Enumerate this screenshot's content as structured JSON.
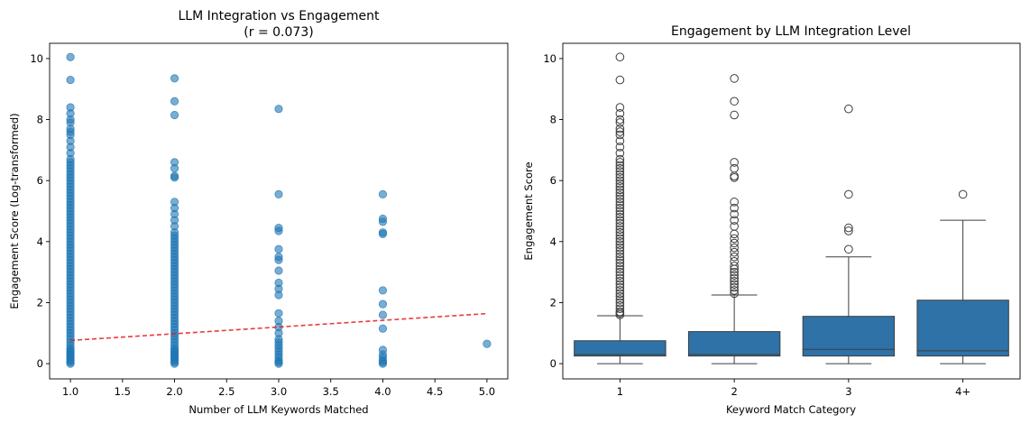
{
  "chart_data": [
    {
      "type": "scatter",
      "title": "LLM Integration vs Engagement",
      "subtitle": "(r = 0.073)",
      "xlabel": "Number of LLM Keywords Matched",
      "ylabel": "Engagement Score (Log-transformed)",
      "xlim": [
        0.8,
        5.2
      ],
      "ylim": [
        -0.5,
        10.5
      ],
      "xticks": [
        "1.0",
        "1.5",
        "2.0",
        "2.5",
        "3.0",
        "3.5",
        "4.0",
        "4.5",
        "5.0"
      ],
      "yticks": [
        "0",
        "2",
        "4",
        "6",
        "8",
        "10"
      ],
      "grid": false,
      "point_color": "#1f77b4",
      "series": [
        {
          "x": 1,
          "y": [
            0,
            0.05,
            0.1,
            0.15,
            0.2,
            0.25,
            0.3,
            0.35,
            0.4,
            0.45,
            0.5,
            0.6,
            0.7,
            0.8,
            0.9,
            1.0,
            1.1,
            1.2,
            1.3,
            1.4,
            1.5,
            1.6,
            1.7,
            1.8,
            1.9,
            2.0,
            2.1,
            2.2,
            2.3,
            2.4,
            2.5,
            2.6,
            2.7,
            2.8,
            2.9,
            3.0,
            3.1,
            3.2,
            3.3,
            3.4,
            3.5,
            3.6,
            3.7,
            3.8,
            3.9,
            4.0,
            4.1,
            4.2,
            4.3,
            4.4,
            4.5,
            4.6,
            4.7,
            4.8,
            4.9,
            5.0,
            5.1,
            5.2,
            5.3,
            5.4,
            5.5,
            5.6,
            5.7,
            5.8,
            5.9,
            6.0,
            6.1,
            6.2,
            6.3,
            6.4,
            6.5,
            6.6,
            6.7,
            6.9,
            7.1,
            7.3,
            7.5,
            7.6,
            7.7,
            7.9,
            8.0,
            8.2,
            8.4,
            9.3,
            10.05
          ]
        },
        {
          "x": 2,
          "y": [
            0,
            0.05,
            0.1,
            0.15,
            0.2,
            0.25,
            0.3,
            0.35,
            0.4,
            0.45,
            0.5,
            0.6,
            0.7,
            0.8,
            0.9,
            1.0,
            1.1,
            1.2,
            1.3,
            1.4,
            1.5,
            1.6,
            1.7,
            1.8,
            1.9,
            2.0,
            2.1,
            2.2,
            2.3,
            2.4,
            2.5,
            2.6,
            2.7,
            2.8,
            2.9,
            3.0,
            3.1,
            3.2,
            3.3,
            3.4,
            3.5,
            3.6,
            3.7,
            3.8,
            3.9,
            4.0,
            4.1,
            4.2,
            4.3,
            4.5,
            4.7,
            4.9,
            5.1,
            5.3,
            6.1,
            6.15,
            6.4,
            6.6,
            8.15,
            8.6,
            9.35
          ]
        },
        {
          "x": 3,
          "y": [
            0,
            0.05,
            0.1,
            0.2,
            0.3,
            0.4,
            0.5,
            0.6,
            0.7,
            0.8,
            1.0,
            1.2,
            1.4,
            1.65,
            2.25,
            2.45,
            2.65,
            3.05,
            3.4,
            3.5,
            3.75,
            4.35,
            4.45,
            5.55,
            8.35
          ]
        },
        {
          "x": 4,
          "y": [
            0,
            0.05,
            0.1,
            0.2,
            0.3,
            0.45,
            1.15,
            1.6,
            1.95,
            2.4,
            4.25,
            4.3,
            4.65,
            4.75,
            5.55
          ]
        },
        {
          "x": 5,
          "y": [
            0.65
          ]
        }
      ],
      "trendline": {
        "x": [
          1,
          5
        ],
        "y": [
          0.76,
          1.64
        ],
        "color": "#e41a1c",
        "style": "dashed"
      }
    },
    {
      "type": "box",
      "title": "Engagement by LLM Integration Level",
      "xlabel": "Keyword Match Category",
      "ylabel": "Engagement Score",
      "ylim": [
        -0.5,
        10.5
      ],
      "yticks": [
        "0",
        "2",
        "4",
        "6",
        "8",
        "10"
      ],
      "grid": false,
      "box_color": "#2e72a8",
      "categories": [
        "1",
        "2",
        "3",
        "4+"
      ],
      "boxes": [
        {
          "q1": 0.25,
          "median": 0.3,
          "q3": 0.75,
          "whisker_low": 0,
          "whisker_high": 1.57,
          "outliers": [
            1.6,
            1.65,
            1.7,
            1.8,
            1.9,
            2.0,
            2.1,
            2.2,
            2.3,
            2.4,
            2.5,
            2.6,
            2.7,
            2.8,
            2.9,
            3.0,
            3.1,
            3.2,
            3.3,
            3.4,
            3.5,
            3.6,
            3.7,
            3.8,
            3.9,
            4.0,
            4.1,
            4.2,
            4.3,
            4.4,
            4.5,
            4.6,
            4.7,
            4.8,
            4.9,
            5.0,
            5.1,
            5.2,
            5.3,
            5.4,
            5.5,
            5.6,
            5.7,
            5.8,
            5.9,
            6.0,
            6.1,
            6.2,
            6.3,
            6.4,
            6.5,
            6.6,
            6.7,
            6.9,
            7.1,
            7.3,
            7.5,
            7.6,
            7.7,
            7.9,
            8.0,
            8.2,
            8.4,
            9.3,
            10.05
          ]
        },
        {
          "q1": 0.25,
          "median": 0.3,
          "q3": 1.05,
          "whisker_low": 0,
          "whisker_high": 2.25,
          "outliers": [
            2.3,
            2.4,
            2.5,
            2.6,
            2.7,
            2.8,
            2.9,
            3.0,
            3.1,
            3.2,
            3.35,
            3.5,
            3.65,
            3.8,
            3.95,
            4.1,
            4.25,
            4.5,
            4.7,
            4.9,
            5.1,
            5.3,
            6.1,
            6.15,
            6.4,
            6.6,
            8.15,
            8.6,
            9.35
          ]
        },
        {
          "q1": 0.25,
          "median": 0.47,
          "q3": 1.55,
          "whisker_low": 0,
          "whisker_high": 3.5,
          "outliers": [
            3.75,
            4.35,
            4.45,
            5.55,
            8.35
          ]
        },
        {
          "q1": 0.25,
          "median": 0.42,
          "q3": 2.08,
          "whisker_low": 0,
          "whisker_high": 4.7,
          "outliers": [
            5.55
          ]
        }
      ]
    }
  ]
}
